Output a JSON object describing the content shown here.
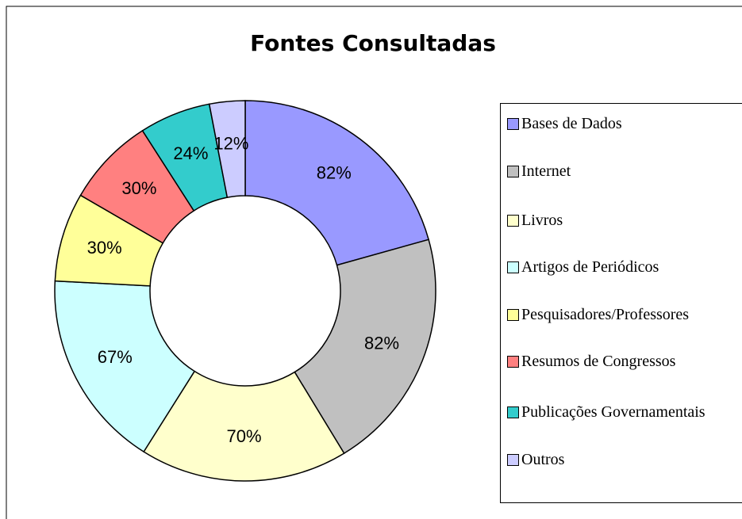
{
  "chart_data": {
    "type": "donut",
    "title": "Fontes Consultadas",
    "categories": [
      "Bases de Dados",
      "Internet",
      "Livros",
      "Artigos de Periódicos",
      "Pesquisadores/Professores",
      "Resumos de Congressos",
      "Publicações Governamentais",
      "Outros"
    ],
    "values": [
      82,
      82,
      70,
      67,
      30,
      30,
      24,
      12
    ],
    "value_labels": [
      "82%",
      "82%",
      "70%",
      "67%",
      "30%",
      "30%",
      "24%",
      "12%"
    ],
    "colors": [
      "#9999ff",
      "#c0c0c0",
      "#ffffcc",
      "#ccffff",
      "#ffff99",
      "#ff8080",
      "#33cccc",
      "#ccccff"
    ],
    "legend": "right"
  }
}
